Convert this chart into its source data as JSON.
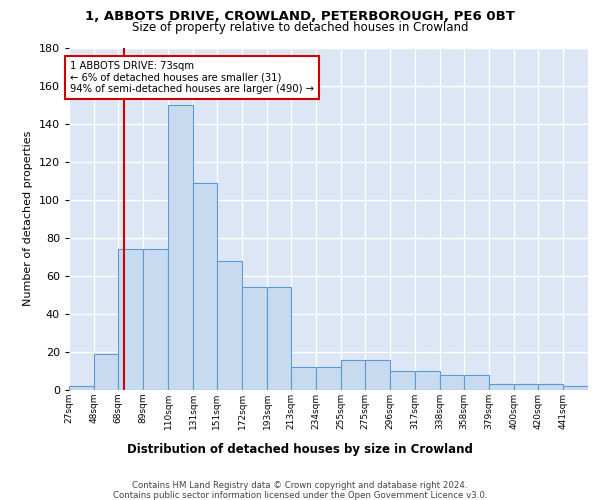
{
  "title_line1": "1, ABBOTS DRIVE, CROWLAND, PETERBOROUGH, PE6 0BT",
  "title_line2": "Size of property relative to detached houses in Crowland",
  "xlabel": "Distribution of detached houses by size in Crowland",
  "ylabel": "Number of detached properties",
  "bar_color": "#c8daf0",
  "bar_edge_color": "#5b9bd5",
  "background_color": "#dce6f5",
  "grid_color": "#ffffff",
  "bin_edges": [
    27,
    48,
    68,
    89,
    110,
    131,
    151,
    172,
    193,
    213,
    234,
    255,
    275,
    296,
    317,
    338,
    358,
    379,
    400,
    420,
    441,
    462
  ],
  "bin_labels": [
    "27sqm",
    "48sqm",
    "68sqm",
    "89sqm",
    "110sqm",
    "131sqm",
    "151sqm",
    "172sqm",
    "193sqm",
    "213sqm",
    "234sqm",
    "255sqm",
    "275sqm",
    "296sqm",
    "317sqm",
    "338sqm",
    "358sqm",
    "379sqm",
    "400sqm",
    "420sqm",
    "441sqm"
  ],
  "bar_heights": [
    2,
    19,
    74,
    74,
    150,
    109,
    68,
    54,
    54,
    12,
    12,
    16,
    16,
    10,
    10,
    8,
    8,
    3,
    3,
    3,
    2
  ],
  "red_line_x": 73,
  "annotation_text": "1 ABBOTS DRIVE: 73sqm\n← 6% of detached houses are smaller (31)\n94% of semi-detached houses are larger (490) →",
  "ylim": [
    0,
    180
  ],
  "yticks": [
    0,
    20,
    40,
    60,
    80,
    100,
    120,
    140,
    160,
    180
  ],
  "footnote": "Contains HM Land Registry data © Crown copyright and database right 2024.\nContains public sector information licensed under the Open Government Licence v3.0."
}
